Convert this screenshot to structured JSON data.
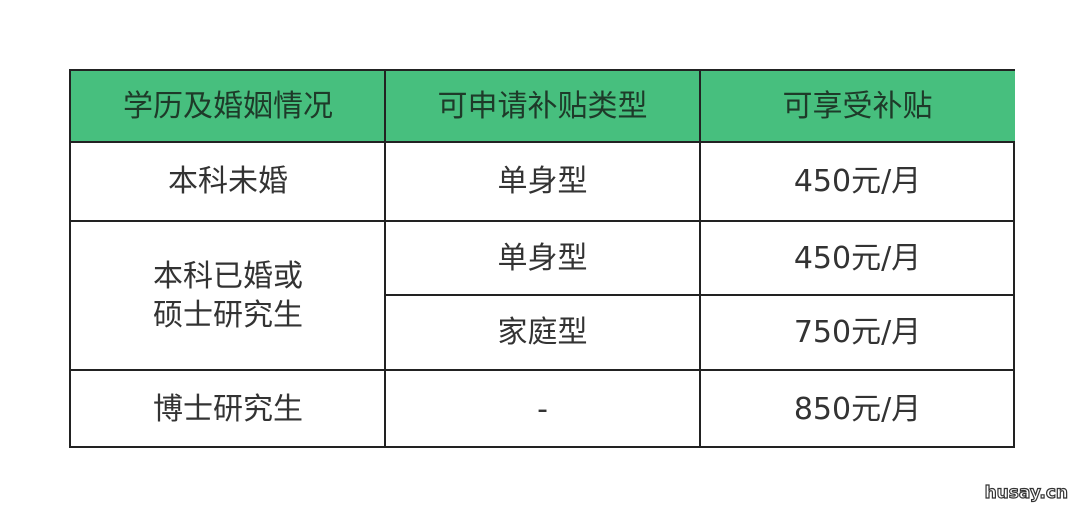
{
  "table": {
    "headers": [
      "学历及婚姻情况",
      "可申请补贴类型",
      "可享受补贴"
    ],
    "rows": [
      {
        "status": "本科未婚",
        "type": "单身型",
        "amount": "450元/月"
      },
      {
        "status": "本科已婚或\n硕士研究生",
        "type": "单身型",
        "amount": "450元/月"
      },
      {
        "status": "",
        "type": "家庭型",
        "amount": "750元/月"
      },
      {
        "status": "博士研究生",
        "type": "-",
        "amount": "850元/月"
      }
    ],
    "merged_status_line1": "本科已婚或",
    "merged_status_line2": "硕士研究生"
  },
  "watermark": "husay.cn",
  "colors": {
    "header_bg": "#47bf7e",
    "border": "#222222"
  }
}
